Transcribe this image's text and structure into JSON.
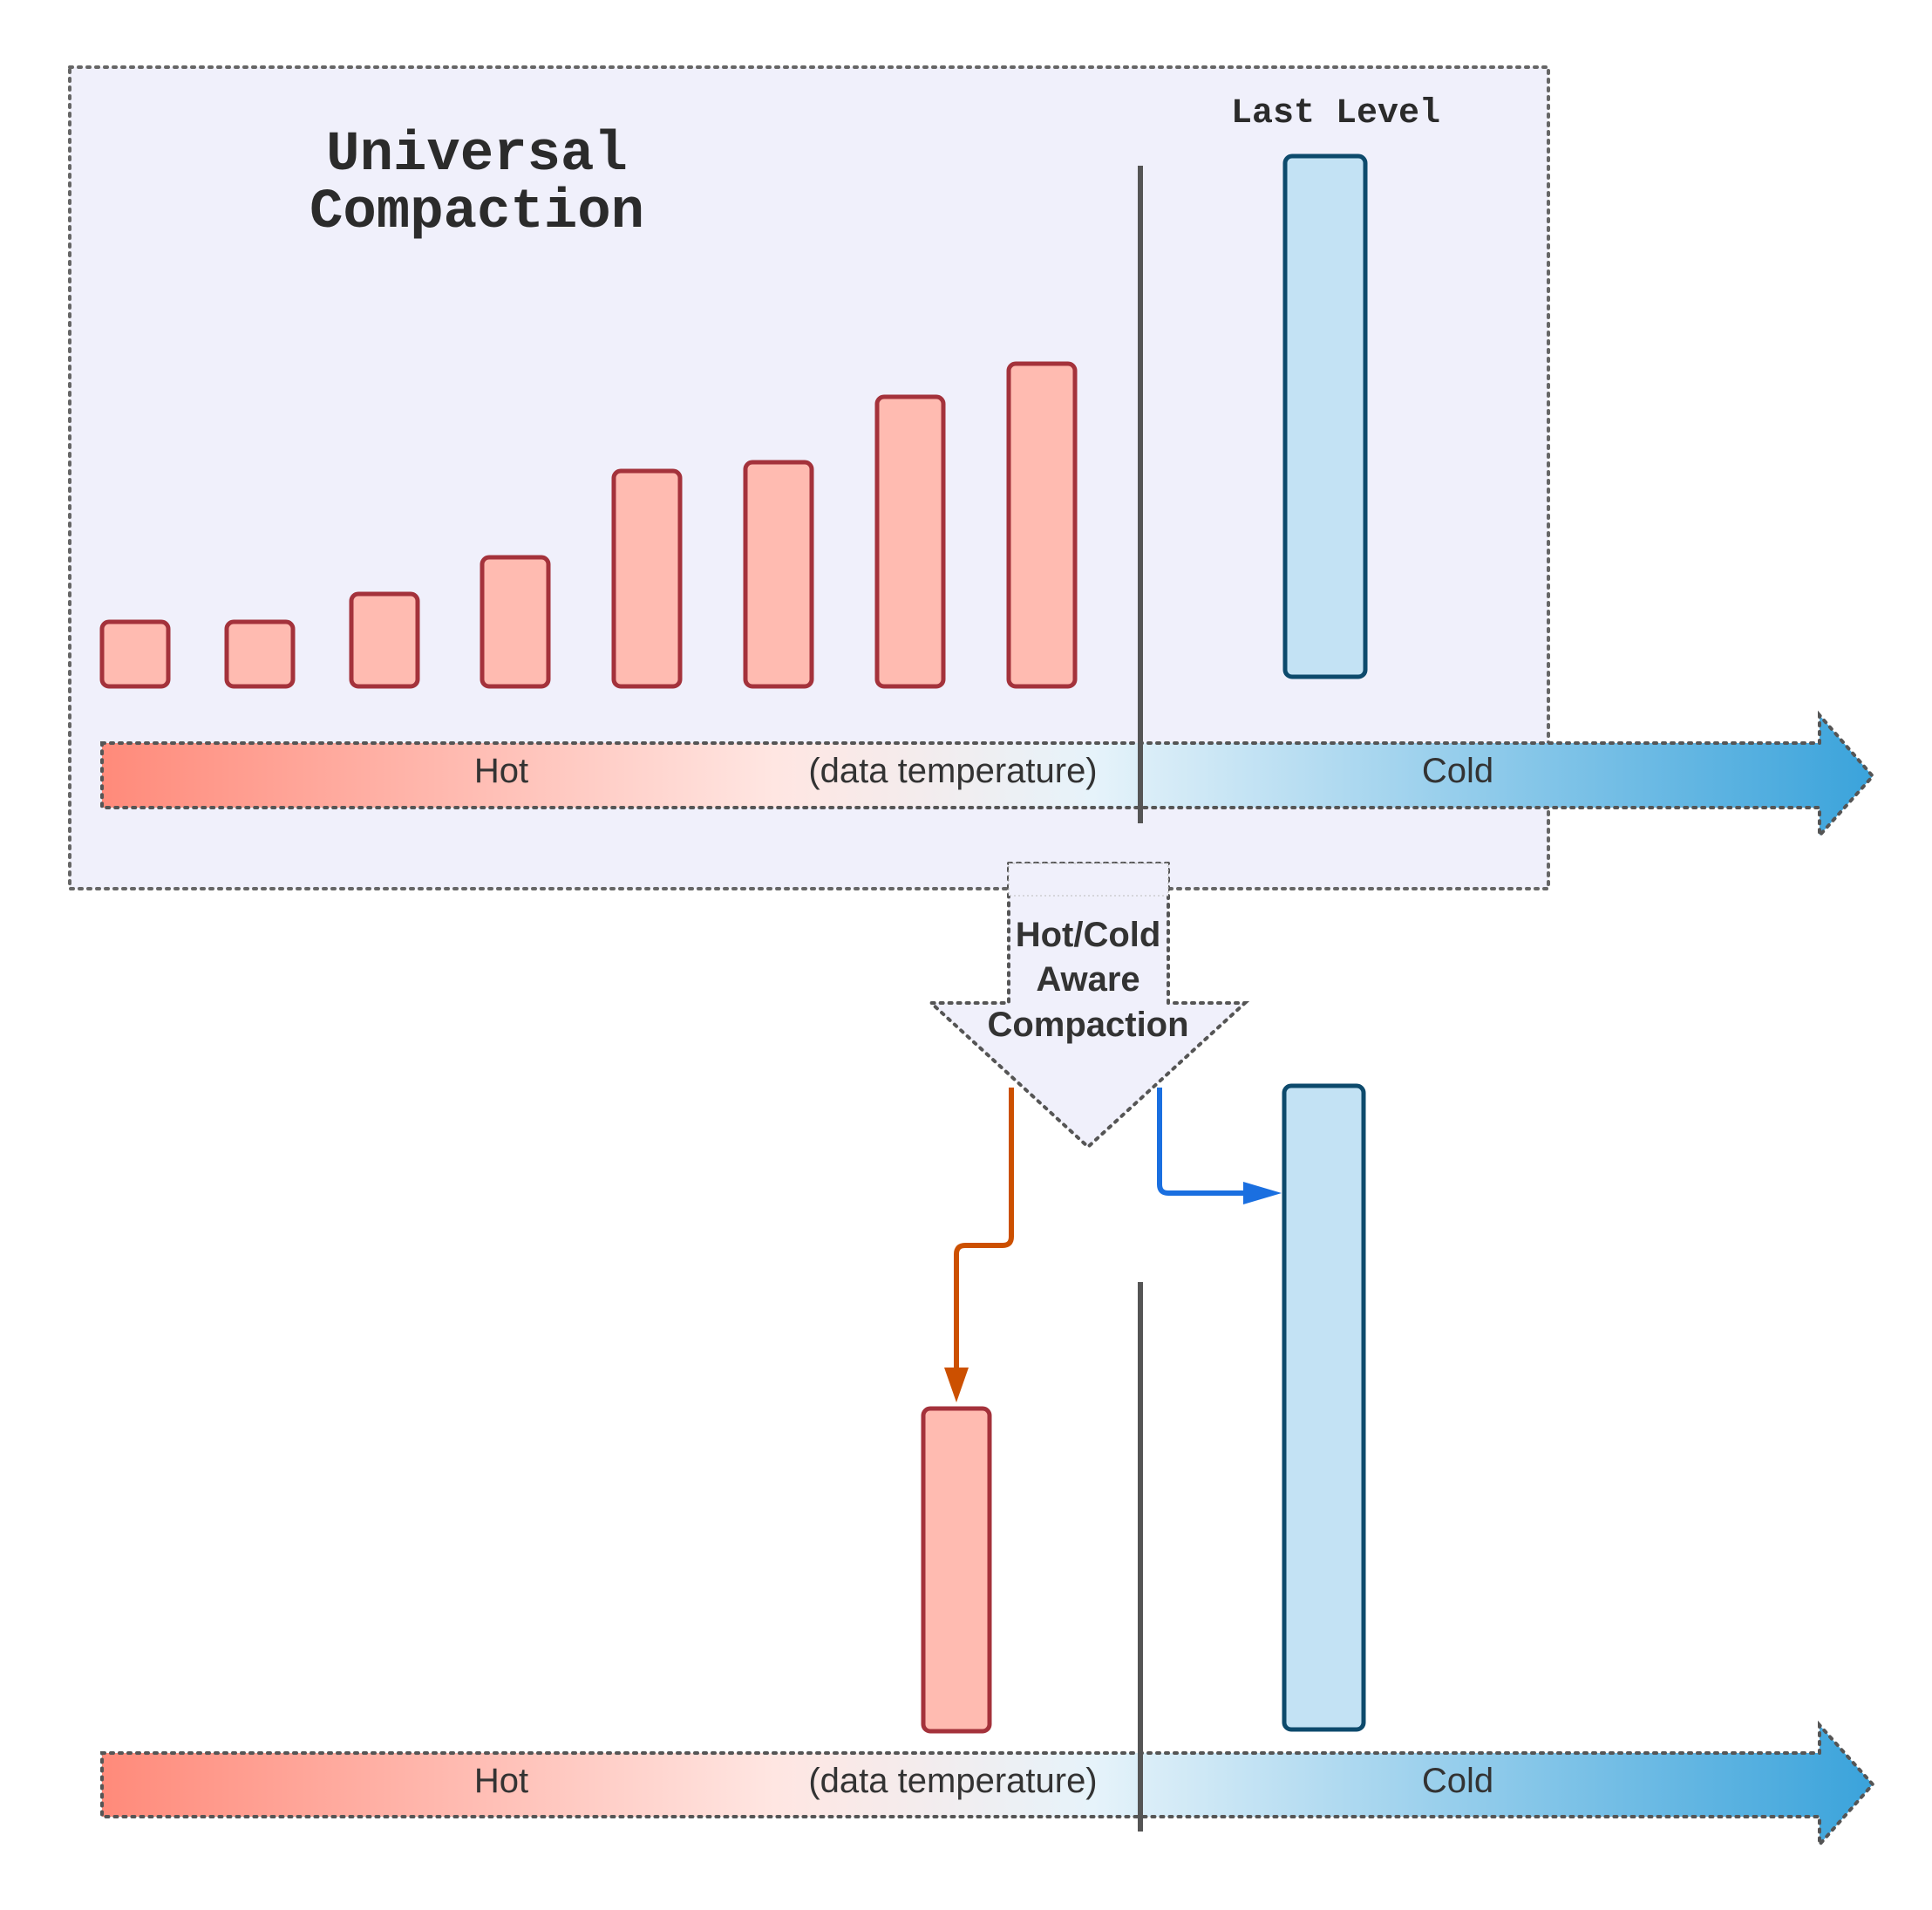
{
  "title_line1": "Universal",
  "title_line2": "Compaction",
  "last_level_label": "Last Level",
  "top_axis": {
    "hot": "Hot",
    "middle": "(data temperature)",
    "cold": "Cold"
  },
  "bottom_axis": {
    "hot": "Hot",
    "middle": "(data temperature)",
    "cold": "Cold"
  },
  "transition_label": {
    "line1": "Hot/Cold",
    "line2": "Aware",
    "line3": "Compaction"
  },
  "colors": {
    "panel_fill": "#f0f0fb",
    "hot_fill": "#ffbbb1",
    "hot_stroke": "#a4323b",
    "cold_fill": "#c3e2f4",
    "cold_stroke": "#0d4a6c",
    "hot_arrow": "#cc5000",
    "cold_arrow": "#1a6fe0",
    "gradient_hot": "#ff8a7a",
    "gradient_cold": "#3aa3db",
    "divider": "#555555"
  }
}
